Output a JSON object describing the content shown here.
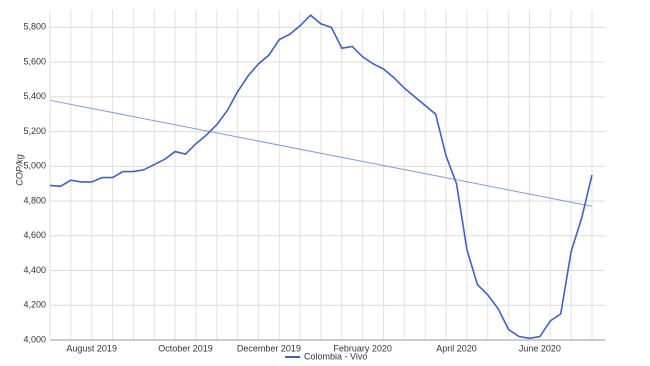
{
  "chart_data": {
    "type": "line",
    "y_label": "COP/kg",
    "categories": [
      null,
      null,
      null,
      null,
      "August 2019",
      null,
      null,
      null,
      null,
      null,
      null,
      null,
      null,
      "October 2019",
      null,
      null,
      null,
      null,
      null,
      null,
      null,
      "December 2019",
      null,
      null,
      null,
      null,
      null,
      null,
      null,
      null,
      "February 2020",
      null,
      null,
      null,
      null,
      null,
      null,
      null,
      null,
      "April 2020",
      null,
      null,
      null,
      null,
      null,
      null,
      null,
      "June 2020",
      null,
      null,
      null,
      null,
      null
    ],
    "series": [
      {
        "name": "Colombia - Vivo",
        "color": "#3a62c9",
        "values": [
          4890,
          4885,
          4920,
          4910,
          4910,
          4935,
          4935,
          4970,
          4970,
          4980,
          5010,
          5040,
          5085,
          5070,
          5130,
          5180,
          5240,
          5320,
          5430,
          5520,
          5590,
          5640,
          5730,
          5760,
          5810,
          5870,
          5820,
          5800,
          5680,
          5690,
          5630,
          5590,
          5560,
          5510,
          5450,
          5400,
          5350,
          5300,
          5060,
          4900,
          4520,
          4320,
          4260,
          4180,
          4060,
          4020,
          4010,
          4020,
          4110,
          4150,
          4510,
          4700,
          4950
        ]
      }
    ],
    "trend": {
      "color": "#7f9be0",
      "values": [
        5380,
        4770
      ]
    },
    "ylim": [
      4000,
      5900
    ],
    "yticks": [
      {
        "value": 4000,
        "label": "4,000"
      },
      {
        "value": 4200,
        "label": "4,200"
      },
      {
        "value": 4400,
        "label": "4,400"
      },
      {
        "value": 4600,
        "label": "4,600"
      },
      {
        "value": 4800,
        "label": "4,800"
      },
      {
        "value": 5000,
        "label": "5,000"
      },
      {
        "value": 5200,
        "label": "5,200"
      },
      {
        "value": 5400,
        "label": "5,400"
      },
      {
        "value": 5600,
        "label": "5,600"
      },
      {
        "value": 5800,
        "label": "5,800"
      }
    ],
    "grid": true
  }
}
